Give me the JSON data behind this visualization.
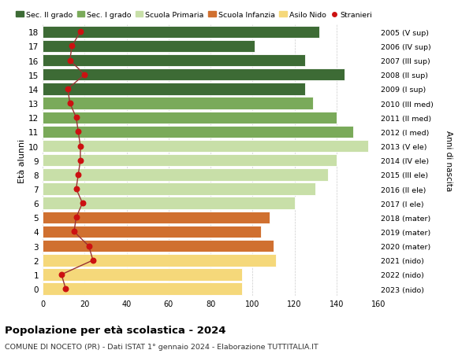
{
  "ages": [
    18,
    17,
    16,
    15,
    14,
    13,
    12,
    11,
    10,
    9,
    8,
    7,
    6,
    5,
    4,
    3,
    2,
    1,
    0
  ],
  "right_labels": [
    "2005 (V sup)",
    "2006 (IV sup)",
    "2007 (III sup)",
    "2008 (II sup)",
    "2009 (I sup)",
    "2010 (III med)",
    "2011 (II med)",
    "2012 (I med)",
    "2013 (V ele)",
    "2014 (IV ele)",
    "2015 (III ele)",
    "2016 (II ele)",
    "2017 (I ele)",
    "2018 (mater)",
    "2019 (mater)",
    "2020 (mater)",
    "2021 (nido)",
    "2022 (nido)",
    "2023 (nido)"
  ],
  "bar_values": [
    132,
    101,
    125,
    144,
    125,
    129,
    140,
    148,
    155,
    140,
    136,
    130,
    120,
    108,
    104,
    110,
    111,
    95,
    95
  ],
  "bar_colors": [
    "#3d6b35",
    "#3d6b35",
    "#3d6b35",
    "#3d6b35",
    "#3d6b35",
    "#7aaa5a",
    "#7aaa5a",
    "#7aaa5a",
    "#c8dfa8",
    "#c8dfa8",
    "#c8dfa8",
    "#c8dfa8",
    "#c8dfa8",
    "#d07030",
    "#d07030",
    "#d07030",
    "#f5d87a",
    "#f5d87a",
    "#f5d87a"
  ],
  "stranieri_values": [
    18,
    14,
    13,
    20,
    12,
    13,
    16,
    17,
    18,
    18,
    17,
    16,
    19,
    16,
    15,
    22,
    24,
    9,
    11
  ],
  "legend_labels": [
    "Sec. II grado",
    "Sec. I grado",
    "Scuola Primaria",
    "Scuola Infanzia",
    "Asilo Nido",
    "Stranieri"
  ],
  "legend_colors": [
    "#3d6b35",
    "#7aaa5a",
    "#c8dfa8",
    "#d07030",
    "#f5d87a",
    "#cc1111"
  ],
  "xlim": [
    0,
    160
  ],
  "ylim": [
    -0.5,
    18.5
  ],
  "xlabel_ticks": [
    0,
    20,
    40,
    60,
    80,
    100,
    120,
    140,
    160
  ],
  "ylabel": "Età alunni",
  "right_ylabel": "Anni di nascita",
  "title": "Popolazione per età scolastica - 2024",
  "subtitle": "COMUNE DI NOCETO (PR) - Dati ISTAT 1° gennaio 2024 - Elaborazione TUTTITALIA.IT",
  "bg_color": "#ffffff",
  "bar_height": 0.85,
  "stranieri_color": "#cc1111",
  "stranieri_line_color": "#993333",
  "grid_color": "#cccccc"
}
